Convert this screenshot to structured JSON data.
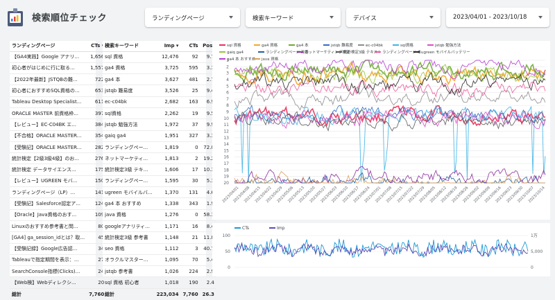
{
  "app": {
    "title": "検索順位チェック"
  },
  "filters": [
    {
      "label": "ランディングページ"
    },
    {
      "label": "検索キーワード"
    },
    {
      "label": "デバイス"
    },
    {
      "label": "2023/04/01 - 2023/10/18"
    }
  ],
  "lp_table": {
    "headers": [
      "ランディングページ",
      "CTs ▾"
    ],
    "rows": [
      [
        "【GA4実践】Google アナリ...",
        "1,656"
      ],
      [
        "初心者がはじめに行に取る...",
        "1,557"
      ],
      [
        "【2022年最新】JSTQBの難...",
        "722"
      ],
      [
        "初心者におすすめSQL資格の...",
        "653"
      ],
      [
        "Tableau Desktop Specialist...",
        "611"
      ],
      [
        "ORACLE MASTER 前資格枠...",
        "397"
      ],
      [
        "【レビュー】EC-C04BK エ...",
        "384"
      ],
      [
        "【不合格】ORACLE MASTER...",
        "354"
      ],
      [
        "【受験記】ORACLE MASTER...",
        "282"
      ],
      [
        "統計検定【2級3級4級】のお...",
        "276"
      ],
      [
        "統計検定 データサイエンス...",
        "175"
      ],
      [
        "【レビュー】UGREEN モバ...",
        "150"
      ],
      [
        "ランディングページ（LP）...",
        "141"
      ],
      [
        "【受験記】Salesforce認定ア...",
        "124"
      ],
      [
        "【Oracle】Java資格のおす...",
        "109"
      ],
      [
        "Linuxのおすすめ参考書と問...",
        "80"
      ],
      [
        "[GA4] ga_session_idとは？取...",
        "45"
      ],
      [
        "【受験記録】Google広告認...",
        "34"
      ],
      [
        "Tableauで指定期間を表示：...",
        "27"
      ],
      [
        "SearchConsole指標(Clicks)...",
        "24"
      ],
      [
        "【Web検】Webディレクシ...",
        "20"
      ]
    ],
    "total": [
      "総計",
      "7,760"
    ]
  },
  "kw_table": {
    "headers": [
      "検索キーワード",
      "Imp ▾",
      "CTs",
      "Pos."
    ],
    "rows": [
      [
        "sql 資格",
        "12,476",
        "92",
        "9.7"
      ],
      [
        "ga4 資格",
        "3,725",
        "595",
        "3.3"
      ],
      [
        "ga4 本",
        "3,627",
        "481",
        "2.7"
      ],
      [
        "jstqb 難易度",
        "3,526",
        "25",
        "9.4"
      ],
      [
        "ec-c04bk",
        "2,682",
        "163",
        "6.9"
      ],
      [
        "sql資格",
        "2,262",
        "19",
        "9.5"
      ],
      [
        "jstqb 勉強方法",
        "1,972",
        "37",
        "9.9"
      ],
      [
        "gaiq ga4",
        "1,951",
        "327",
        "3.3"
      ],
      [
        "ランディングペー...",
        "1,819",
        "0",
        "72.0"
      ],
      [
        "ネットマーケティ...",
        "1,813",
        "2",
        "19.2"
      ],
      [
        "統計検定3級 テキ...",
        "1,606",
        "17",
        "10.3"
      ],
      [
        "ランディングペー...",
        "1,595",
        "30",
        "5.3"
      ],
      [
        "ugreen モバイルバ...",
        "1,370",
        "131",
        "4.6"
      ],
      [
        "ga4 本 おすすめ",
        "1,338",
        "343",
        "1.9"
      ],
      [
        "java 資格",
        "1,276",
        "0",
        "58.3"
      ],
      [
        "googleアナリティ...",
        "1,171",
        "16",
        "8.4"
      ],
      [
        "統計検定3級 参考書",
        "1,148",
        "21",
        "11.8"
      ],
      [
        "seo 資格",
        "1,112",
        "3",
        "40.7"
      ],
      [
        "オラクルマスター...",
        "1,095",
        "70",
        "5.4"
      ],
      [
        "jstqb 参考書",
        "1,026",
        "224",
        "2.9"
      ],
      [
        "sql 資格 初心者",
        "1,018",
        "190",
        "2.4"
      ]
    ],
    "total": [
      "総計",
      "223,034",
      "7,760",
      "26.3"
    ]
  },
  "colors": {
    "accent": "#4285f4",
    "ct_line": "#1a9ad6",
    "imp_line": "#5e4bb5"
  },
  "chart_data": [
    {
      "type": "line",
      "series": [
        {
          "name": "sql 資格",
          "color": "#e8305a",
          "level": 9.7
        },
        {
          "name": "ga4 資格",
          "color": "#f2a72b",
          "level": 3.3
        },
        {
          "name": "ga4 本",
          "color": "#6ea835",
          "level": 2.7
        },
        {
          "name": "jstqb 難易度",
          "color": "#2f6bc7",
          "level": 9.4
        },
        {
          "name": "ec-c04bk",
          "color": "#8c8c8c",
          "level": 6.9
        },
        {
          "name": "sql資格",
          "color": "#3fb4e5",
          "level": 9.5
        },
        {
          "name": "jstqb 勉強方法",
          "color": "#d94fc2",
          "level": 9.9
        },
        {
          "name": "gaiq ga4",
          "color": "#9ac33c",
          "level": 3.3
        },
        {
          "name": "ランディングページ 改善",
          "color": "#1f5fa0",
          "level": 20
        },
        {
          "name": "ネットマーケティング検定",
          "color": "#8d2e9e",
          "level": 19.2
        },
        {
          "name": "統計検定3級 テキスト",
          "color": "#5b5b5b",
          "level": 10.3
        },
        {
          "name": "ランディングページ 本",
          "color": "#ef5b9c",
          "level": 5.3
        },
        {
          "name": "ugreen モバイルバッテリー",
          "color": "#2a2a2a",
          "level": 4.6
        },
        {
          "name": "ga4 本 おすすめ",
          "color": "#b43fd1",
          "level": 1.9
        },
        {
          "name": "java 資格",
          "color": "#d8a35f",
          "level": 20
        }
      ],
      "yticks": [
        1,
        2,
        3,
        4,
        5,
        6,
        7,
        8,
        9,
        10,
        11,
        12,
        13,
        14,
        15,
        16,
        17,
        18,
        19,
        20
      ],
      "ylim": [
        1,
        20
      ],
      "xticks": [
        "2023/04/01",
        "2023/04/08",
        "2023/04/15",
        "2023/04/22",
        "2023/04/29",
        "2023/05/06",
        "2023/05/13",
        "2023/05/20",
        "2023/05/27",
        "2023/06/03",
        "2023/06/10",
        "2023/06/17",
        "2023/06/24",
        "2023/07/01",
        "2023/07/08",
        "2023/07/15",
        "2023/07/22",
        "2023/07/29",
        "2023/08/05",
        "2023/08/12",
        "2023/08/19",
        "2023/08/26",
        "2023/09/02",
        "2023/09/09",
        "2023/09/16",
        "2023/09/23",
        "2023/09/30",
        "2023/10/07",
        "2023/10/14"
      ]
    },
    {
      "type": "line",
      "series": [
        {
          "name": "CTs",
          "color": "#1a9ad6",
          "axis": "left"
        },
        {
          "name": "Imp",
          "color": "#5e4bb5",
          "axis": "right"
        }
      ],
      "left_ticks": [
        "100",
        "50",
        "0"
      ],
      "right_ticks": [
        "1万",
        "5,000",
        "0"
      ]
    }
  ]
}
